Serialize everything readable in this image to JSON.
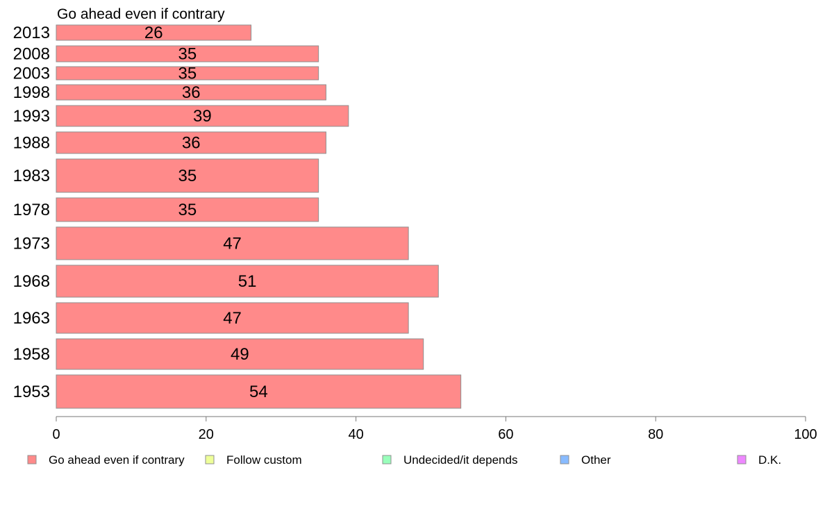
{
  "chart_data": {
    "type": "bar",
    "orientation": "horizontal",
    "title": "Go ahead even if contrary",
    "categories": [
      "2013",
      "2008",
      "2003",
      "1998",
      "1993",
      "1988",
      "1983",
      "1978",
      "1973",
      "1968",
      "1963",
      "1958",
      "1953"
    ],
    "series": [
      {
        "name": "Go ahead even if contrary",
        "values": [
          26,
          35,
          35,
          36,
          39,
          36,
          35,
          35,
          47,
          51,
          47,
          49,
          54
        ],
        "color": "#ff8a8a"
      }
    ],
    "xlim": [
      0,
      100
    ],
    "xticks": [
      "0",
      "20",
      "40",
      "60",
      "80",
      "100"
    ],
    "grid": false,
    "legend": {
      "position": "bottom",
      "entries": [
        {
          "label": "Go ahead even if contrary",
          "color": "#ff8a8a"
        },
        {
          "label": "Follow custom",
          "color": "#eeff99"
        },
        {
          "label": "Undecided/it depends",
          "color": "#99ffbb"
        },
        {
          "label": "Other",
          "color": "#88bbff"
        },
        {
          "label": "D.K.",
          "color": "#ee88ff"
        }
      ]
    }
  }
}
